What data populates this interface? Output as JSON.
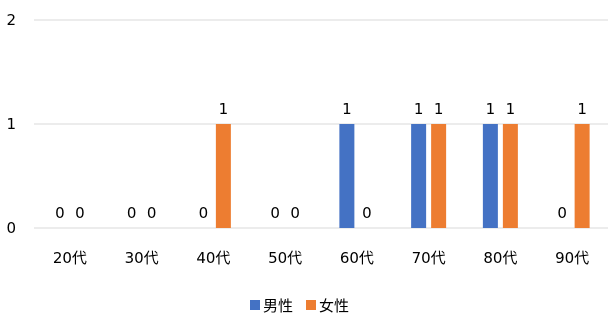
{
  "chart_data": {
    "type": "bar",
    "categories": [
      "20代",
      "30代",
      "40代",
      "50代",
      "60代",
      "70代",
      "80代",
      "90代"
    ],
    "series": [
      {
        "name": "男性",
        "color": "#4472C4",
        "values": [
          0,
          0,
          0,
          0,
          1,
          1,
          1,
          0
        ]
      },
      {
        "name": "女性",
        "color": "#ED7D31",
        "values": [
          0,
          0,
          1,
          0,
          0,
          1,
          1,
          1
        ]
      }
    ],
    "y_ticks": [
      "0",
      "1",
      "2"
    ],
    "ylim": [
      0,
      2
    ],
    "grid": true,
    "gridline_color": "#D9D9D9",
    "legend_position": "bottom"
  }
}
